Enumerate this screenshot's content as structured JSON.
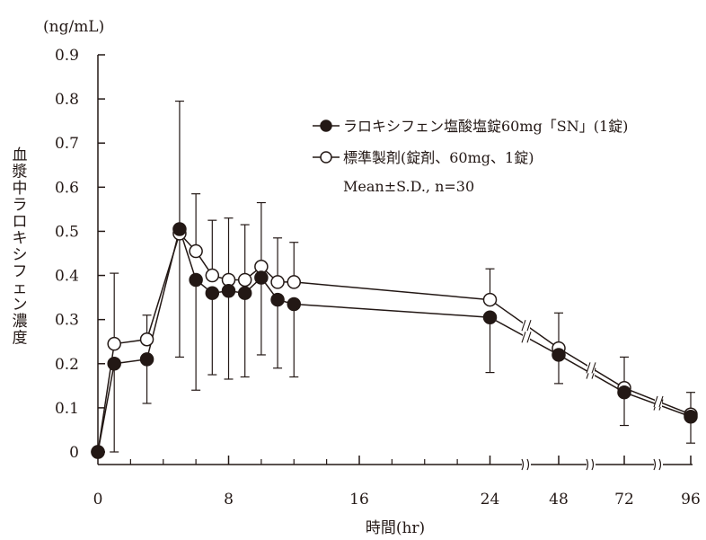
{
  "chart_data": {
    "type": "line",
    "unit_label": "(ng/mL)",
    "xlabel": "時間(hr)",
    "ylabel": "血漿中ラロキシフェン濃度",
    "ylim": [
      0,
      0.9
    ],
    "y_ticks": [
      "0",
      "0.1",
      "0.2",
      "0.3",
      "0.4",
      "0.5",
      "0.6",
      "0.7",
      "0.8",
      "0.9"
    ],
    "x_ticks": [
      "0",
      "8",
      "16",
      "24",
      "48",
      "72",
      "96"
    ],
    "axis_breaks": [
      "24-48",
      "48-72",
      "72-96"
    ],
    "grid": false,
    "legend_position": "top-right",
    "legend_note": "Mean±S.D., n=30",
    "x": [
      0,
      1,
      3,
      5,
      6,
      7,
      8,
      9,
      10,
      11,
      12,
      24,
      48,
      72,
      96
    ],
    "series": [
      {
        "name": "ラロキシフェン塩酸塩錠60mg「SN」(1錠)",
        "marker": "filled-circle",
        "color": "#231815",
        "values": [
          0,
          0.2,
          0.21,
          0.505,
          0.39,
          0.36,
          0.365,
          0.36,
          0.395,
          0.345,
          0.335,
          0.305,
          0.22,
          0.135,
          0.08
        ],
        "sd": [
          0,
          0.2,
          0.1,
          0.29,
          0.25,
          0.185,
          0.2,
          0.19,
          0.175,
          0.155,
          0.165,
          0.125,
          0.065,
          0.075,
          0.06
        ]
      },
      {
        "name": "標準製剤(錠剤、60mg、1錠)",
        "marker": "open-circle",
        "color": "#231815",
        "values": [
          0,
          0.245,
          0.255,
          0.495,
          0.455,
          0.4,
          0.39,
          0.39,
          0.42,
          0.385,
          0.385,
          0.345,
          0.235,
          0.145,
          0.085
        ],
        "sd": [
          0,
          0.16,
          0.055,
          0.3,
          0.13,
          0.125,
          0.14,
          0.125,
          0.145,
          0.1,
          0.09,
          0.07,
          0.08,
          0.07,
          0.05
        ]
      }
    ]
  }
}
